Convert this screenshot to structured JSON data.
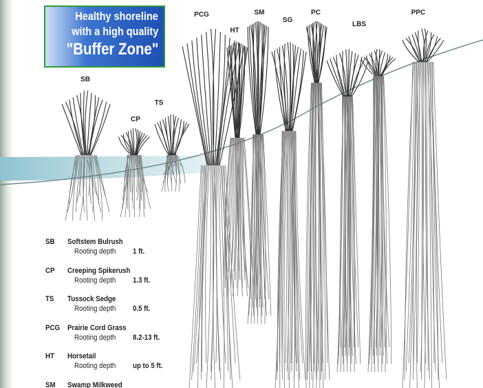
{
  "title": [
    "Healthy shoreline",
    "with a high quality",
    "\"Buffer Zone\""
  ],
  "plant_labels": [
    "SB",
    "CP",
    "TS",
    "PCG",
    "HT",
    "SM",
    "SG",
    "PC",
    "LBS",
    "PPC"
  ],
  "legend": [
    {
      "code": "SB",
      "name": "Softstem Bulrush",
      "depth_label": "Rooting depth",
      "depth": "1 ft."
    },
    {
      "code": "CP",
      "name": "Creeping Spikerush",
      "depth_label": "Rooting depth",
      "depth": "1.3 ft."
    },
    {
      "code": "TS",
      "name": "Tussock Sedge",
      "depth_label": "Rooting depth",
      "depth": "0.5 ft."
    },
    {
      "code": "PCG",
      "name": "Prairie Cord Grass",
      "depth_label": "Rooting depth",
      "depth": "8.2-13 ft."
    },
    {
      "code": "HT",
      "name": "Horsetail",
      "depth_label": "Rooting depth",
      "depth": "up to 5 ft."
    },
    {
      "code": "SM",
      "name": "Swamp Milkweed"
    }
  ]
}
